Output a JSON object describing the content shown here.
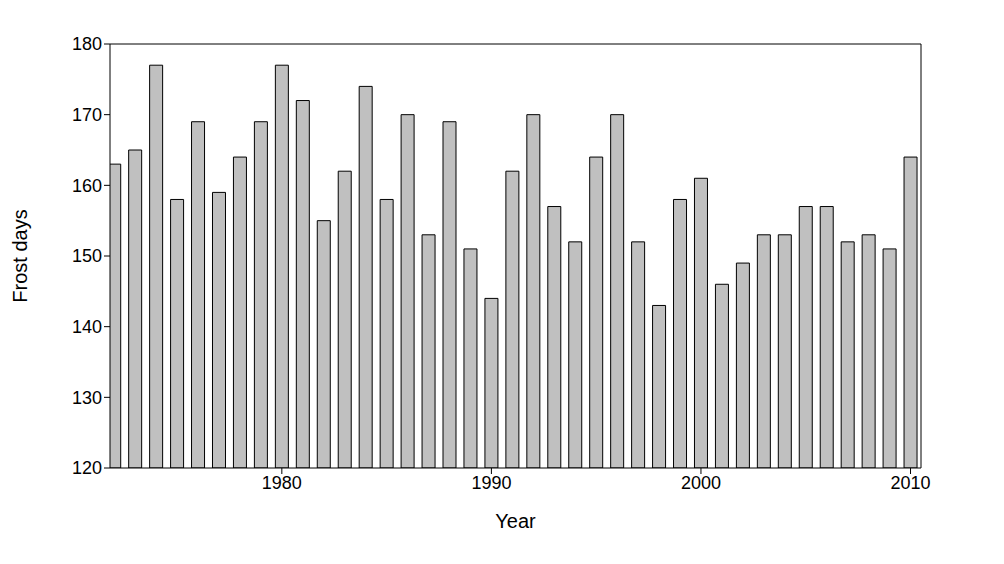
{
  "chart_data": {
    "type": "bar",
    "x_label": "Year",
    "y_label": "Frost days",
    "x": [
      1972,
      1973,
      1974,
      1975,
      1976,
      1977,
      1978,
      1979,
      1980,
      1981,
      1982,
      1983,
      1984,
      1985,
      1986,
      1987,
      1988,
      1989,
      1990,
      1991,
      1992,
      1993,
      1994,
      1995,
      1996,
      1997,
      1998,
      1999,
      2000,
      2001,
      2002,
      2003,
      2004,
      2005,
      2006,
      2007,
      2008,
      2009,
      2010
    ],
    "values": [
      163,
      165,
      177,
      158,
      169,
      159,
      164,
      169,
      177,
      172,
      155,
      162,
      174,
      158,
      170,
      153,
      169,
      151,
      144,
      162,
      170,
      157,
      152,
      164,
      170,
      152,
      143,
      158,
      161,
      146,
      149,
      153,
      153,
      157,
      157,
      152,
      153,
      151,
      164
    ],
    "color": "#c0c0c0",
    "xlim": [
      1971.8,
      2010.5
    ],
    "xticks": [
      1980,
      1990,
      2000,
      2010
    ],
    "ylim": [
      120,
      180
    ],
    "yticks": [
      120,
      130,
      140,
      150,
      160,
      170,
      180
    ],
    "grid": false
  }
}
